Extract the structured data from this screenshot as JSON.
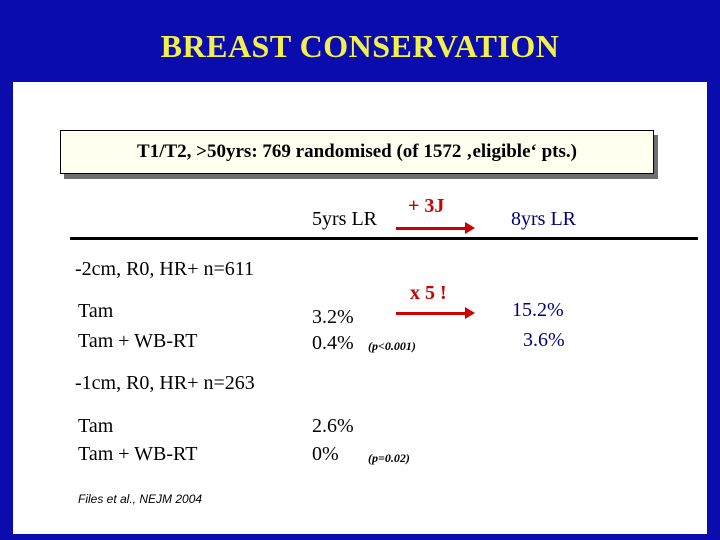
{
  "title": "BREAST CONSERVATION",
  "subtitle": "T1/T2, >50yrs: 769 randomised (of 1572 ‚eligible‘ pts.)",
  "columns": {
    "lr5": "5yrs LR",
    "arrow_label_top": "+ 3J",
    "lr8": "8yrs LR"
  },
  "groups": [
    {
      "header": "-2cm, R0, HR+  n=611",
      "arrow_label": "x 5 !",
      "rows": [
        {
          "label": "Tam",
          "lr5": "3.2%",
          "lr8": "15.2%"
        },
        {
          "label": "Tam + WB-RT",
          "lr5": "0.4%",
          "lr8": "3.6%"
        }
      ],
      "p_value": "(p<0.001)"
    },
    {
      "header": "-1cm, R0, HR+  n=263",
      "rows": [
        {
          "label": "Tam",
          "lr5": "2.6%"
        },
        {
          "label": "Tam + WB-RT",
          "lr5": "0%"
        }
      ],
      "p_value": "(p=0.02)"
    }
  ],
  "citation": "Files et al., NEJM 2004",
  "colors": {
    "background": "#0a0cae",
    "title": "#f2f04a",
    "accent_red": "#cc0000",
    "text_blue": "#00007a"
  }
}
